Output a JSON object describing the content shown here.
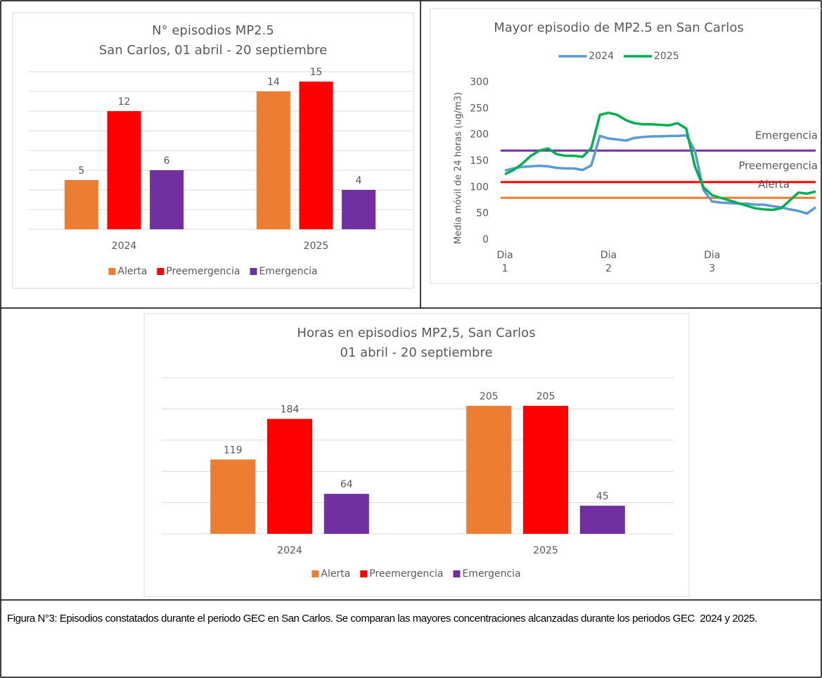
{
  "chart_data": [
    {
      "type": "bar",
      "title": "N° episodios MP2.5",
      "subtitle": "San Carlos, 01 abril - 20 septiembre",
      "categories": [
        "2024",
        "2025"
      ],
      "series": [
        {
          "name": "Alerta",
          "color": "#ed7d31",
          "values": [
            5,
            14
          ]
        },
        {
          "name": "Preemergencia",
          "color": "#ff0000",
          "values": [
            12,
            15
          ]
        },
        {
          "name": "Emergencia",
          "color": "#7030a0",
          "values": [
            6,
            4
          ]
        }
      ],
      "ylim": [
        0,
        16
      ],
      "yticks": [
        0,
        2,
        4,
        6,
        8,
        10,
        12,
        14,
        16
      ],
      "grid": true,
      "legend": "bottom"
    },
    {
      "type": "line",
      "title": "Mayor episodio de MP2.5 en San Carlos",
      "ylabel": "Media móvil de 24 horas (ug/m3)",
      "x": [
        0,
        2,
        4,
        6,
        8,
        10,
        12,
        14,
        16,
        18,
        20,
        22,
        24,
        26,
        28,
        30,
        32,
        34,
        36,
        38,
        40,
        42,
        44,
        46,
        48,
        50,
        52,
        54,
        56,
        58,
        60,
        62,
        64,
        66,
        68,
        70,
        72
      ],
      "xlim": [
        -1,
        72
      ],
      "xticks": [
        {
          "value": 0,
          "label": "Dia 1"
        },
        {
          "value": 24,
          "label": "Dia 2"
        },
        {
          "value": 48,
          "label": "Dia 3"
        }
      ],
      "ylim": [
        0,
        300
      ],
      "yticks": [
        0,
        50,
        100,
        150,
        200,
        250,
        300
      ],
      "grid": false,
      "legend": "top",
      "series": [
        {
          "name": "2024",
          "color": "#5b9bd5",
          "values": [
            132,
            136,
            139,
            140,
            141,
            140,
            137,
            136,
            136,
            133,
            142,
            198,
            193,
            191,
            189,
            194,
            196,
            197,
            197,
            198,
            198,
            199,
            170,
            95,
            73,
            71,
            70,
            69,
            69,
            67,
            67,
            64,
            62,
            58,
            55,
            50,
            62
          ]
        },
        {
          "name": "2025",
          "color": "#00b050",
          "values": [
            125,
            133,
            145,
            160,
            170,
            174,
            163,
            160,
            160,
            158,
            175,
            238,
            242,
            238,
            228,
            222,
            220,
            220,
            219,
            218,
            222,
            212,
            140,
            100,
            85,
            80,
            75,
            70,
            65,
            60,
            58,
            57,
            60,
            75,
            90,
            88,
            92
          ]
        }
      ],
      "thresholds": [
        {
          "label": "Emergencia",
          "value": 170,
          "color": "#7030a0"
        },
        {
          "label": "Preemergencia",
          "value": 110,
          "color": "#ff0000"
        },
        {
          "label": "Alerta",
          "value": 80,
          "color": "#ed7d31"
        }
      ]
    },
    {
      "type": "bar",
      "title": "Horas en episodios MP2,5, San Carlos",
      "subtitle": "01 abril - 20 septiembre",
      "categories": [
        "2024",
        "2025"
      ],
      "series": [
        {
          "name": "Alerta",
          "color": "#ed7d31",
          "values": [
            119,
            205
          ]
        },
        {
          "name": "Preemergencia",
          "color": "#ff0000",
          "values": [
            184,
            205
          ]
        },
        {
          "name": "Emergencia",
          "color": "#7030a0",
          "values": [
            64,
            45
          ]
        }
      ],
      "ylim": [
        0,
        250
      ],
      "yticks": [
        0,
        50,
        100,
        150,
        200,
        250
      ],
      "grid": true,
      "legend": "bottom"
    }
  ],
  "caption": "Figura N°3: Episodios constatados durante el periodo GEC en San Carlos. Se comparan las mayores concentraciones alcanzadas durante los periodos GEC  2024 y 2025."
}
